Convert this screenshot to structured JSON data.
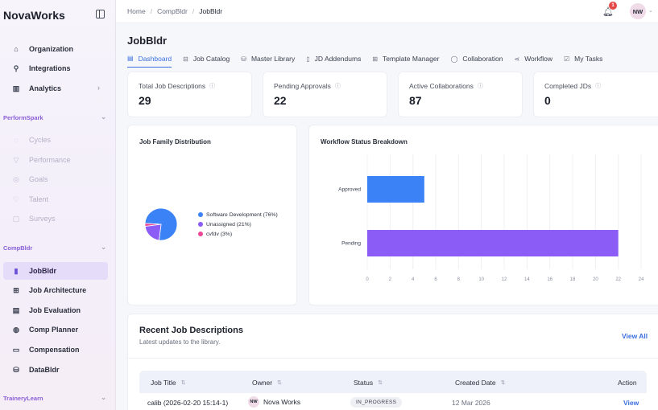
{
  "brand": "NovaWorks",
  "sidebar": {
    "top_items": [
      {
        "label": "Organization",
        "icon": "building-icon"
      },
      {
        "label": "Integrations",
        "icon": "plug-icon"
      },
      {
        "label": "Analytics",
        "icon": "chart-icon"
      }
    ],
    "sections": [
      {
        "label": "PerformSpark",
        "items": [
          "Cycles",
          "Performance",
          "Goals",
          "Talent",
          "Surveys"
        ]
      },
      {
        "label": "CompBldr",
        "items": [
          "JobBldr",
          "Job Architecture",
          "Job Evaluation",
          "Comp Planner",
          "Compensation",
          "DataBldr"
        ]
      },
      {
        "label": "TraineryLearn"
      }
    ]
  },
  "breadcrumb": [
    "Home",
    "CompBldr",
    "JobBldr"
  ],
  "notifications_count": "1",
  "user_initials": "NW",
  "page_title": "JobBldr",
  "tabs": [
    "Dashboard",
    "Job Catalog",
    "Master Library",
    "JD Addendums",
    "Template Manager",
    "Collaboration",
    "Workflow",
    "My Tasks"
  ],
  "stats": [
    {
      "label": "Total Job Descriptions",
      "value": "29"
    },
    {
      "label": "Pending Approvals",
      "value": "22"
    },
    {
      "label": "Active Collaborations",
      "value": "87"
    },
    {
      "label": "Completed JDs",
      "value": "0"
    }
  ],
  "panels": {
    "pie_title": "Job Family Distribution",
    "bar_title": "Workflow Status Breakdown"
  },
  "chart_data": [
    {
      "type": "pie",
      "title": "Job Family Distribution",
      "labels": [
        "Software Development (76%)",
        "Unassigned (21%)",
        "cvfdv (3%)"
      ],
      "values": [
        76,
        21,
        3
      ],
      "colors": [
        "#3b82f6",
        "#8b5cf6",
        "#ec4899"
      ]
    },
    {
      "type": "bar",
      "orientation": "horizontal",
      "title": "Workflow Status Breakdown",
      "categories": [
        "Approved",
        "Pending"
      ],
      "values": [
        5,
        22
      ],
      "colors": [
        "#3b82f6",
        "#8b5cf6"
      ],
      "xlim": [
        0,
        24
      ],
      "xticks": [
        "0",
        "2",
        "4",
        "6",
        "8",
        "10",
        "12",
        "14",
        "16",
        "18",
        "20",
        "22",
        "24"
      ]
    }
  ],
  "recent": {
    "title": "Recent Job Descriptions",
    "subtitle": "Latest updates to the library.",
    "view_all": "View All",
    "columns": [
      "Job Title",
      "Owner",
      "Status",
      "Created Date",
      "Action"
    ],
    "rows": [
      {
        "title": "calib (2026-02-20 15:14-1)",
        "owner_initials": "NW",
        "owner": "Nova Works",
        "status": "IN_PROGRESS",
        "created": "12 Mar 2026",
        "action": "View"
      }
    ]
  }
}
